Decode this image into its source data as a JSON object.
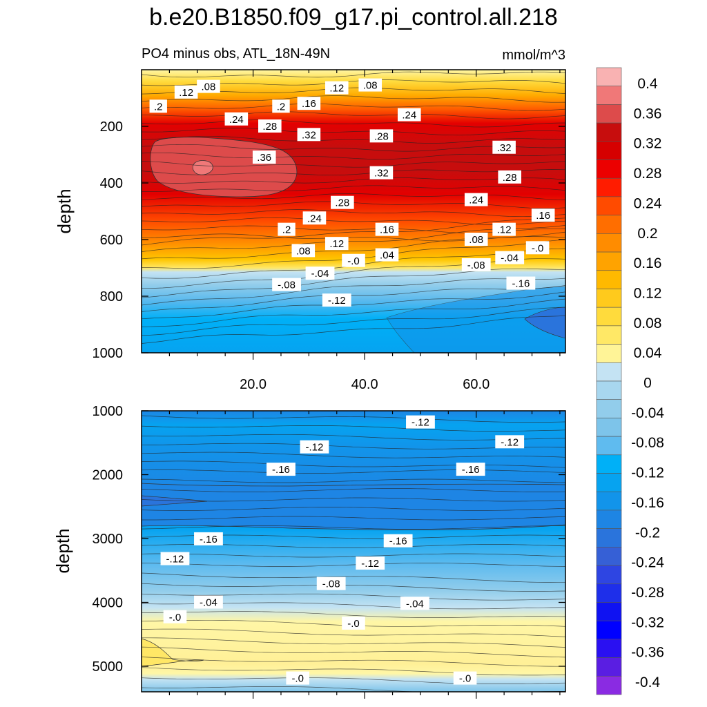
{
  "chart_data": {
    "type": "heatmap",
    "title": "b.e20.B1850.f09_g17.pi_control.all.218",
    "subtitle_left": "PO4 minus obs, ATL_18N-49N",
    "subtitle_right": "mmol/m^3",
    "xlim": [
      0,
      76
    ],
    "x_ticks": [
      "20.0",
      "40.0",
      "60.0"
    ],
    "panels": [
      {
        "name": "upper",
        "ylabel": "depth",
        "ylim": [
          0,
          1000
        ],
        "y_ticks": [
          "200",
          "400",
          "600",
          "800",
          "1000"
        ],
        "contour_labels": [
          {
            "x": 3,
            "y": 130,
            "text": ".2"
          },
          {
            "x": 8,
            "y": 80,
            "text": ".12"
          },
          {
            "x": 12,
            "y": 60,
            "text": ".08"
          },
          {
            "x": 17,
            "y": 175,
            "text": ".24"
          },
          {
            "x": 25,
            "y": 130,
            "text": ".2"
          },
          {
            "x": 30,
            "y": 120,
            "text": ".16"
          },
          {
            "x": 35,
            "y": 65,
            "text": ".12"
          },
          {
            "x": 41,
            "y": 55,
            "text": ".08"
          },
          {
            "x": 23,
            "y": 200,
            "text": ".28"
          },
          {
            "x": 30,
            "y": 230,
            "text": ".32"
          },
          {
            "x": 22,
            "y": 310,
            "text": ".36"
          },
          {
            "x": 43,
            "y": 235,
            "text": ".28"
          },
          {
            "x": 48,
            "y": 160,
            "text": ".24"
          },
          {
            "x": 65,
            "y": 275,
            "text": ".32"
          },
          {
            "x": 43,
            "y": 365,
            "text": ".32"
          },
          {
            "x": 66,
            "y": 380,
            "text": ".28"
          },
          {
            "x": 36,
            "y": 470,
            "text": ".28"
          },
          {
            "x": 60,
            "y": 460,
            "text": ".24"
          },
          {
            "x": 31,
            "y": 525,
            "text": ".24"
          },
          {
            "x": 26,
            "y": 565,
            "text": ".2"
          },
          {
            "x": 44,
            "y": 565,
            "text": ".16"
          },
          {
            "x": 72,
            "y": 515,
            "text": ".16"
          },
          {
            "x": 65,
            "y": 565,
            "text": ".12"
          },
          {
            "x": 35,
            "y": 615,
            "text": ".12"
          },
          {
            "x": 29,
            "y": 640,
            "text": ".08"
          },
          {
            "x": 60,
            "y": 600,
            "text": ".08"
          },
          {
            "x": 44,
            "y": 655,
            "text": ".04"
          },
          {
            "x": 38,
            "y": 675,
            "text": "-.0"
          },
          {
            "x": 71,
            "y": 630,
            "text": "-.0"
          },
          {
            "x": 66,
            "y": 665,
            "text": "-.04"
          },
          {
            "x": 60,
            "y": 690,
            "text": "-.08"
          },
          {
            "x": 32,
            "y": 720,
            "text": "-.04"
          },
          {
            "x": 26,
            "y": 760,
            "text": "-.08"
          },
          {
            "x": 68,
            "y": 755,
            "text": "-.16"
          },
          {
            "x": 35,
            "y": 815,
            "text": "-.12"
          }
        ]
      },
      {
        "name": "lower",
        "ylabel": "depth",
        "ylim": [
          1000,
          5400
        ],
        "y_ticks": [
          "1000",
          "2000",
          "3000",
          "4000",
          "5000"
        ],
        "contour_labels": [
          {
            "x": 50,
            "y": 1180,
            "text": "-.12"
          },
          {
            "x": 31,
            "y": 1570,
            "text": "-.12"
          },
          {
            "x": 66,
            "y": 1490,
            "text": "-.12"
          },
          {
            "x": 25,
            "y": 1920,
            "text": "-.16"
          },
          {
            "x": 59,
            "y": 1920,
            "text": "-.16"
          },
          {
            "x": 12,
            "y": 3010,
            "text": "-.16"
          },
          {
            "x": 46,
            "y": 3040,
            "text": "-.16"
          },
          {
            "x": 6,
            "y": 3320,
            "text": "-.12"
          },
          {
            "x": 41,
            "y": 3390,
            "text": "-.12"
          },
          {
            "x": 34,
            "y": 3710,
            "text": "-.08"
          },
          {
            "x": 12,
            "y": 4000,
            "text": "-.04"
          },
          {
            "x": 49,
            "y": 4020,
            "text": "-.04"
          },
          {
            "x": 6,
            "y": 4230,
            "text": "-.0"
          },
          {
            "x": 38,
            "y": 4330,
            "text": "-.0"
          },
          {
            "x": 28,
            "y": 5190,
            "text": "-.0"
          },
          {
            "x": 58,
            "y": 5190,
            "text": "-.0"
          }
        ]
      }
    ],
    "colorbar": {
      "labels": [
        "0.4",
        "0.36",
        "0.32",
        "0.28",
        "0.24",
        "0.2",
        "0.16",
        "0.12",
        "0.08",
        "0.04",
        "0",
        "-0.04",
        "-0.08",
        "-0.12",
        "-0.16",
        "-0.2",
        "-0.24",
        "-0.28",
        "-0.32",
        "-0.36",
        "-0.4"
      ],
      "colors_top_to_bottom": [
        "#f9b2b2",
        "#f07878",
        "#dd4b4b",
        "#c70d0d",
        "#d60000",
        "#ec0000",
        "#ff1c00",
        "#ff4b00",
        "#ff6e00",
        "#ff8c00",
        "#ffa300",
        "#ffb900",
        "#ffca1c",
        "#ffdb3c",
        "#ffe866",
        "#fff497",
        "#c4e3f3",
        "#a8d7ef",
        "#92cdeb",
        "#7dc4ea",
        "#5fbbef",
        "#00b0f7",
        "#06a3f0",
        "#1294ea",
        "#1e85e4",
        "#2a74dc",
        "#3660d6",
        "#2e45e2",
        "#1e2fea",
        "#0f12f2",
        "#0000ff",
        "#2a10f2",
        "#5a1ee2",
        "#8a2be2"
      ]
    }
  }
}
